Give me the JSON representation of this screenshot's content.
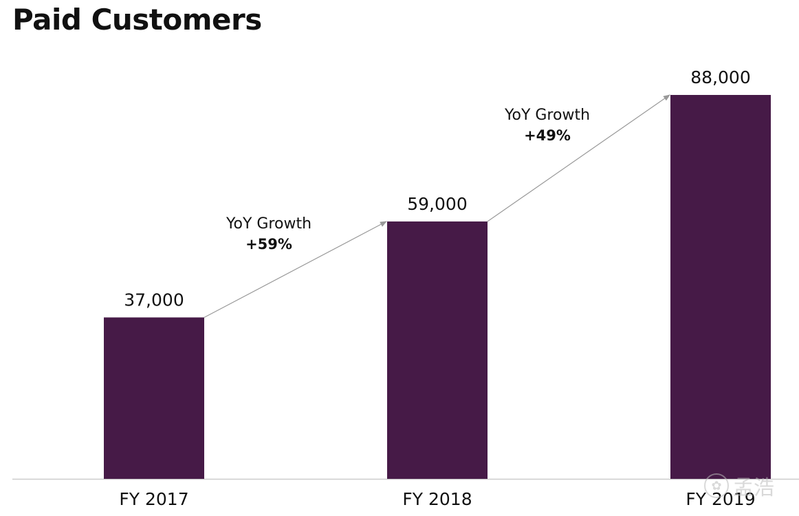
{
  "title": "Paid Customers",
  "chart_data": {
    "type": "bar",
    "title": "Paid Customers",
    "categories": [
      "FY 2017",
      "FY 2018",
      "FY 2019"
    ],
    "values": [
      37000,
      59000,
      88000
    ],
    "value_labels": [
      "37,000",
      "59,000",
      "88,000"
    ],
    "ylim": [
      0,
      88000
    ],
    "grid": false,
    "bar_color": "#461A47",
    "annotations": [
      {
        "from": "FY 2017",
        "to": "FY 2018",
        "label": "YoY Growth",
        "value": "+59%"
      },
      {
        "from": "FY 2018",
        "to": "FY 2019",
        "label": "YoY Growth",
        "value": "+49%"
      }
    ]
  },
  "watermark": {
    "text": "孟浩"
  }
}
